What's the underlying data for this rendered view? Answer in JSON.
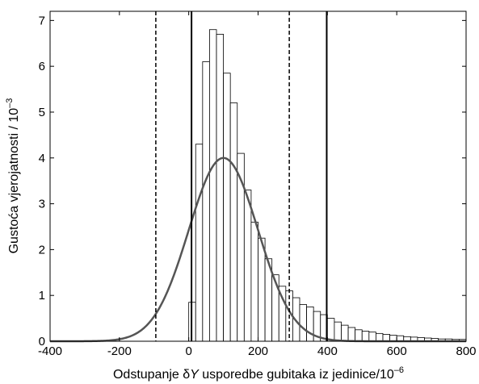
{
  "chart_data": {
    "type": "histogram",
    "xlabel": {
      "prefix": "Odstupanje ",
      "delta": "δ",
      "var": "Y",
      "suffix": " usporedbe gubitaka iz jedinice/10",
      "exp": "–6"
    },
    "ylabel": {
      "text": "Gustoća vjerojatnosti / 10",
      "exp": "–3"
    },
    "xlim": [
      -400,
      800
    ],
    "ylim": [
      0,
      7.2
    ],
    "xticks": [
      -400,
      -200,
      0,
      200,
      400,
      600,
      800
    ],
    "yticks": [
      0,
      1,
      2,
      3,
      4,
      5,
      6,
      7
    ],
    "grid": false,
    "bin_width": 20,
    "bins": [
      {
        "x0": 0,
        "height": 0.85
      },
      {
        "x0": 20,
        "height": 4.3
      },
      {
        "x0": 40,
        "height": 6.1
      },
      {
        "x0": 60,
        "height": 6.8
      },
      {
        "x0": 80,
        "height": 6.7
      },
      {
        "x0": 100,
        "height": 5.85
      },
      {
        "x0": 120,
        "height": 5.2
      },
      {
        "x0": 140,
        "height": 4.1
      },
      {
        "x0": 160,
        "height": 3.3
      },
      {
        "x0": 180,
        "height": 2.6
      },
      {
        "x0": 200,
        "height": 2.25
      },
      {
        "x0": 220,
        "height": 1.8
      },
      {
        "x0": 240,
        "height": 1.45
      },
      {
        "x0": 260,
        "height": 1.2
      },
      {
        "x0": 280,
        "height": 1.1
      },
      {
        "x0": 300,
        "height": 0.95
      },
      {
        "x0": 320,
        "height": 0.8
      },
      {
        "x0": 340,
        "height": 0.75
      },
      {
        "x0": 360,
        "height": 0.65
      },
      {
        "x0": 380,
        "height": 0.58
      },
      {
        "x0": 400,
        "height": 0.5
      },
      {
        "x0": 420,
        "height": 0.42
      },
      {
        "x0": 440,
        "height": 0.35
      },
      {
        "x0": 460,
        "height": 0.3
      },
      {
        "x0": 480,
        "height": 0.25
      },
      {
        "x0": 500,
        "height": 0.22
      },
      {
        "x0": 520,
        "height": 0.2
      },
      {
        "x0": 540,
        "height": 0.17
      },
      {
        "x0": 560,
        "height": 0.15
      },
      {
        "x0": 580,
        "height": 0.13
      },
      {
        "x0": 600,
        "height": 0.12
      },
      {
        "x0": 620,
        "height": 0.1
      },
      {
        "x0": 640,
        "height": 0.09
      },
      {
        "x0": 660,
        "height": 0.08
      },
      {
        "x0": 680,
        "height": 0.07
      },
      {
        "x0": 700,
        "height": 0.06
      },
      {
        "x0": 720,
        "height": 0.05
      },
      {
        "x0": 740,
        "height": 0.05
      },
      {
        "x0": 760,
        "height": 0.04
      },
      {
        "x0": 780,
        "height": 0.04
      }
    ],
    "normal_curve": {
      "mean": 100,
      "std": 100,
      "peak": 4.0,
      "color": "#555555"
    },
    "vlines": [
      {
        "x": -95,
        "style": "dashed"
      },
      {
        "x": 290,
        "style": "dashed"
      },
      {
        "x": 8,
        "style": "solid"
      },
      {
        "x": 398,
        "style": "solid"
      }
    ],
    "colors": {
      "bar_fill": "#ffffff",
      "bar_stroke": "#000000",
      "lines": "#000000"
    }
  }
}
